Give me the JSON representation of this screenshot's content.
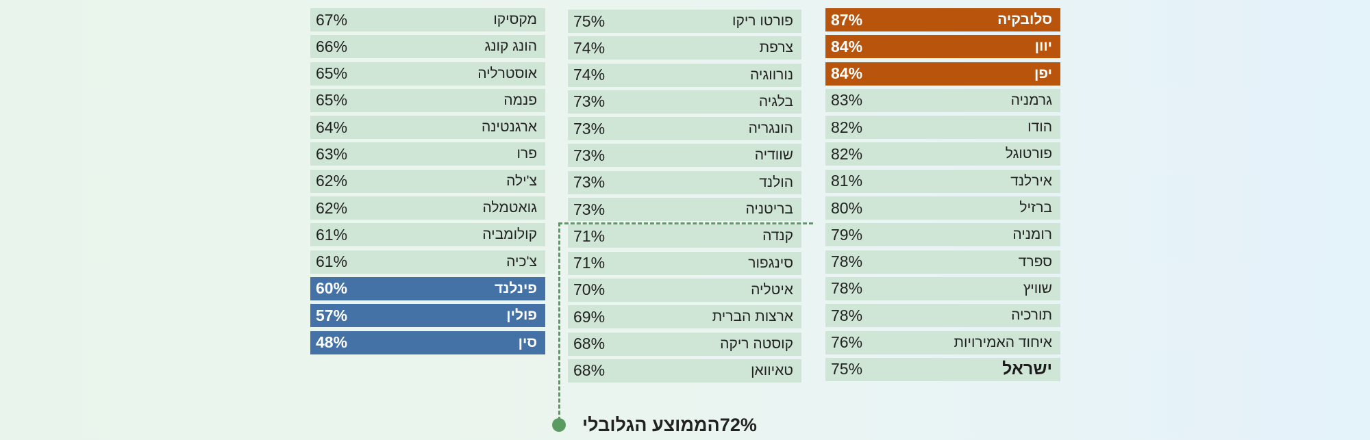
{
  "chart_data": {
    "type": "table",
    "title": "",
    "global_average": {
      "value": "72%",
      "label": "הממוצע הגלובלי"
    },
    "highlight_colors": {
      "top": "#b8540c",
      "bottom": "#4472a6",
      "default": "#cfe5d5",
      "average_line": "#5a9b62"
    },
    "columns": [
      {
        "position": "right",
        "rows": [
          {
            "country": "סלובקיה",
            "value": "87%",
            "style": "top"
          },
          {
            "country": "יוון",
            "value": "84%",
            "style": "top"
          },
          {
            "country": "יפן",
            "value": "84%",
            "style": "top"
          },
          {
            "country": "גרמניה",
            "value": "83%",
            "style": "normal"
          },
          {
            "country": "הודו",
            "value": "82%",
            "style": "normal"
          },
          {
            "country": "פורטוגל",
            "value": "82%",
            "style": "normal"
          },
          {
            "country": "אירלנד",
            "value": "81%",
            "style": "normal"
          },
          {
            "country": "ברזיל",
            "value": "80%",
            "style": "normal"
          },
          {
            "country": "רומניה",
            "value": "79%",
            "style": "normal"
          },
          {
            "country": "ספרד",
            "value": "78%",
            "style": "normal"
          },
          {
            "country": "שוויץ",
            "value": "78%",
            "style": "normal"
          },
          {
            "country": "תורכיה",
            "value": "78%",
            "style": "normal"
          },
          {
            "country": "איחוד האמירויות",
            "value": "76%",
            "style": "normal"
          },
          {
            "country": "ישראל",
            "value": "75%",
            "style": "israel"
          }
        ]
      },
      {
        "position": "middle",
        "rows": [
          {
            "country": "פורטו ריקו",
            "value": "75%",
            "style": "normal"
          },
          {
            "country": "צרפת",
            "value": "74%",
            "style": "normal"
          },
          {
            "country": "נורווגיה",
            "value": "74%",
            "style": "normal"
          },
          {
            "country": "בלגיה",
            "value": "73%",
            "style": "normal"
          },
          {
            "country": "הונגריה",
            "value": "73%",
            "style": "normal"
          },
          {
            "country": "שוודיה",
            "value": "73%",
            "style": "normal"
          },
          {
            "country": "הולנד",
            "value": "73%",
            "style": "normal"
          },
          {
            "country": "בריטניה",
            "value": "73%",
            "style": "normal"
          },
          {
            "country": "קנדה",
            "value": "71%",
            "style": "normal"
          },
          {
            "country": "סינגפור",
            "value": "71%",
            "style": "normal"
          },
          {
            "country": "איטליה",
            "value": "70%",
            "style": "normal"
          },
          {
            "country": "ארצות הברית",
            "value": "69%",
            "style": "normal"
          },
          {
            "country": "קוסטה ריקה",
            "value": "68%",
            "style": "normal"
          },
          {
            "country": "טאיוואן",
            "value": "68%",
            "style": "normal"
          }
        ]
      },
      {
        "position": "left",
        "rows": [
          {
            "country": "מקסיקו",
            "value": "67%",
            "style": "normal"
          },
          {
            "country": "הונג קונג",
            "value": "66%",
            "style": "normal"
          },
          {
            "country": "אוסטרליה",
            "value": "65%",
            "style": "normal"
          },
          {
            "country": "פנמה",
            "value": "65%",
            "style": "normal"
          },
          {
            "country": "ארגנטינה",
            "value": "64%",
            "style": "normal"
          },
          {
            "country": "פרו",
            "value": "63%",
            "style": "normal"
          },
          {
            "country": "צ'ילה",
            "value": "62%",
            "style": "normal"
          },
          {
            "country": "גואטמלה",
            "value": "62%",
            "style": "normal"
          },
          {
            "country": "קולומביה",
            "value": "61%",
            "style": "normal"
          },
          {
            "country": "צ'כיה",
            "value": "61%",
            "style": "normal"
          },
          {
            "country": "פינלנד",
            "value": "60%",
            "style": "bottom"
          },
          {
            "country": "פולין",
            "value": "57%",
            "style": "bottom"
          },
          {
            "country": "סין",
            "value": "48%",
            "style": "bottom"
          }
        ]
      }
    ]
  }
}
